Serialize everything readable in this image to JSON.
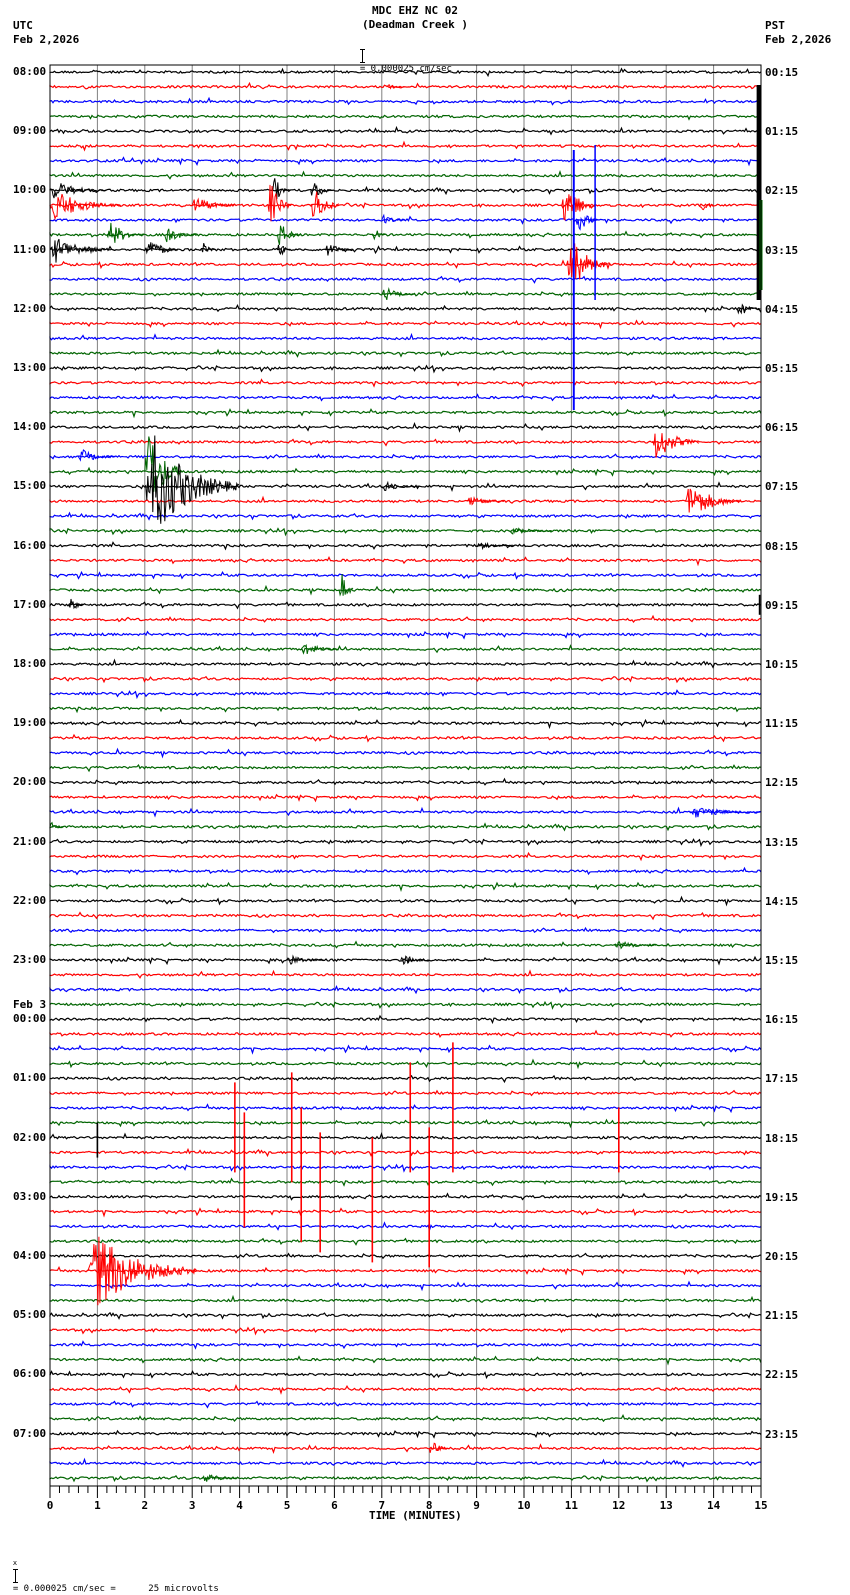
{
  "header": {
    "station_line": "MDC EHZ NC 02",
    "site_line": "(Deadman Creek )",
    "scale_text": "= 0.000025 cm/sec",
    "left_tz": "UTC",
    "left_date": "Feb 2,2026",
    "right_tz": "PST",
    "right_date": "Feb 2,2026"
  },
  "footer": {
    "scale_prefix": "x",
    "scale_text": "= 0.000025 cm/sec =      25 microvolts"
  },
  "colors": {
    "trace_cycle": [
      "#000000",
      "#ff0000",
      "#0000ff",
      "#006400"
    ],
    "grid": "#808080",
    "frame": "#000000"
  },
  "chart_data": {
    "type": "line",
    "title": "MDC EHZ NC 02 (Deadman Creek )",
    "xlabel": "TIME (MINUTES)",
    "ylabel": "",
    "xlim": [
      0,
      15
    ],
    "x_ticks": [
      "0",
      "1",
      "2",
      "3",
      "4",
      "5",
      "6",
      "7",
      "8",
      "9",
      "10",
      "11",
      "12",
      "13",
      "14",
      "15"
    ],
    "traces_per_hour": 4,
    "minutes_per_trace": 15,
    "total_traces": 96,
    "left_labels_utc": [
      {
        "row": 0,
        "label": "08:00"
      },
      {
        "row": 4,
        "label": "09:00"
      },
      {
        "row": 8,
        "label": "10:00"
      },
      {
        "row": 12,
        "label": "11:00"
      },
      {
        "row": 16,
        "label": "12:00"
      },
      {
        "row": 20,
        "label": "13:00"
      },
      {
        "row": 24,
        "label": "14:00"
      },
      {
        "row": 28,
        "label": "15:00"
      },
      {
        "row": 32,
        "label": "16:00"
      },
      {
        "row": 36,
        "label": "17:00"
      },
      {
        "row": 40,
        "label": "18:00"
      },
      {
        "row": 44,
        "label": "19:00"
      },
      {
        "row": 48,
        "label": "20:00"
      },
      {
        "row": 52,
        "label": "21:00"
      },
      {
        "row": 56,
        "label": "22:00"
      },
      {
        "row": 60,
        "label": "23:00"
      },
      {
        "row": 64,
        "label": "00:00",
        "date": "Feb 3"
      },
      {
        "row": 68,
        "label": "01:00"
      },
      {
        "row": 72,
        "label": "02:00"
      },
      {
        "row": 76,
        "label": "03:00"
      },
      {
        "row": 80,
        "label": "04:00"
      },
      {
        "row": 84,
        "label": "05:00"
      },
      {
        "row": 88,
        "label": "06:00"
      },
      {
        "row": 92,
        "label": "07:00"
      }
    ],
    "right_labels_pst": [
      "00:15",
      "01:15",
      "02:15",
      "03:15",
      "04:15",
      "05:15",
      "06:15",
      "07:15",
      "08:15",
      "09:15",
      "10:15",
      "11:15",
      "12:15",
      "13:15",
      "14:15",
      "15:15",
      "16:15",
      "17:15",
      "18:15",
      "19:15",
      "20:15",
      "21:15",
      "22:15",
      "23:15"
    ],
    "events": [
      {
        "row": 1,
        "start_min": 7.1,
        "dur_min": 0.4,
        "amp": 3
      },
      {
        "row": 8,
        "start_min": 0.0,
        "dur_min": 1.2,
        "amp": 10
      },
      {
        "row": 8,
        "start_min": 4.7,
        "dur_min": 0.4,
        "amp": 14
      },
      {
        "row": 8,
        "start_min": 5.5,
        "dur_min": 0.5,
        "amp": 12
      },
      {
        "row": 9,
        "start_min": 0.0,
        "dur_min": 1.5,
        "amp": 16
      },
      {
        "row": 9,
        "start_min": 3.0,
        "dur_min": 0.9,
        "amp": 10
      },
      {
        "row": 9,
        "start_min": 4.6,
        "dur_min": 0.5,
        "amp": 26
      },
      {
        "row": 9,
        "start_min": 5.5,
        "dur_min": 0.6,
        "amp": 24
      },
      {
        "row": 9,
        "start_min": 10.8,
        "dur_min": 0.7,
        "amp": 28
      },
      {
        "row": 9,
        "start_min": 13.7,
        "dur_min": 0.3,
        "amp": 12
      },
      {
        "row": 10,
        "start_min": 7.0,
        "dur_min": 0.5,
        "amp": 6
      },
      {
        "row": 10,
        "start_min": 11.1,
        "dur_min": 0.5,
        "amp": 14
      },
      {
        "row": 11,
        "start_min": 1.2,
        "dur_min": 0.8,
        "amp": 14
      },
      {
        "row": 11,
        "start_min": 2.4,
        "dur_min": 0.7,
        "amp": 10
      },
      {
        "row": 11,
        "start_min": 4.8,
        "dur_min": 0.5,
        "amp": 14
      },
      {
        "row": 11,
        "start_min": 6.8,
        "dur_min": 0.3,
        "amp": 10
      },
      {
        "row": 12,
        "start_min": 0.0,
        "dur_min": 1.4,
        "amp": 14
      },
      {
        "row": 12,
        "start_min": 2.0,
        "dur_min": 0.7,
        "amp": 14
      },
      {
        "row": 12,
        "start_min": 3.2,
        "dur_min": 0.3,
        "amp": 8
      },
      {
        "row": 12,
        "start_min": 4.8,
        "dur_min": 0.3,
        "amp": 10
      },
      {
        "row": 12,
        "start_min": 5.8,
        "dur_min": 0.6,
        "amp": 8
      },
      {
        "row": 13,
        "start_min": 10.9,
        "dur_min": 0.9,
        "amp": 30
      },
      {
        "row": 15,
        "start_min": 7.0,
        "dur_min": 0.7,
        "amp": 8
      },
      {
        "row": 16,
        "start_min": 14.5,
        "dur_min": 0.5,
        "amp": 8
      },
      {
        "row": 25,
        "start_min": 12.7,
        "dur_min": 1.0,
        "amp": 20
      },
      {
        "row": 26,
        "start_min": 0.6,
        "dur_min": 0.8,
        "amp": 8
      },
      {
        "row": 27,
        "start_min": 2.0,
        "dur_min": 0.8,
        "amp": 50
      },
      {
        "row": 28,
        "start_min": 2.0,
        "dur_min": 2.0,
        "amp": 55
      },
      {
        "row": 28,
        "start_min": 7.0,
        "dur_min": 0.8,
        "amp": 5
      },
      {
        "row": 29,
        "start_min": 8.8,
        "dur_min": 0.8,
        "amp": 5
      },
      {
        "row": 29,
        "start_min": 13.4,
        "dur_min": 1.2,
        "amp": 20
      },
      {
        "row": 31,
        "start_min": 9.7,
        "dur_min": 0.9,
        "amp": 5
      },
      {
        "row": 32,
        "start_min": 9.0,
        "dur_min": 0.8,
        "amp": 4
      },
      {
        "row": 35,
        "start_min": 6.1,
        "dur_min": 0.3,
        "amp": 28
      },
      {
        "row": 36,
        "start_min": 0.4,
        "dur_min": 0.3,
        "amp": 12
      },
      {
        "row": 39,
        "start_min": 5.3,
        "dur_min": 0.8,
        "amp": 8
      },
      {
        "row": 42,
        "start_min": 7.1,
        "dur_min": 0.1,
        "amp": 8
      },
      {
        "row": 50,
        "start_min": 13.5,
        "dur_min": 1.5,
        "amp": 6
      },
      {
        "row": 51,
        "start_min": 0.0,
        "dur_min": 0.3,
        "amp": 5
      },
      {
        "row": 59,
        "start_min": 11.9,
        "dur_min": 0.9,
        "amp": 5
      },
      {
        "row": 60,
        "start_min": 5.0,
        "dur_min": 0.8,
        "amp": 6
      },
      {
        "row": 60,
        "start_min": 7.4,
        "dur_min": 0.6,
        "amp": 6
      },
      {
        "row": 81,
        "start_min": 0.8,
        "dur_min": 2.3,
        "amp": 40
      },
      {
        "row": 93,
        "start_min": 8.0,
        "dur_min": 0.4,
        "amp": 10
      },
      {
        "row": 95,
        "start_min": 3.2,
        "dur_min": 0.8,
        "amp": 6
      }
    ],
    "spikes": [
      {
        "row": 73,
        "min": 3.9,
        "up": 70,
        "down": 20
      },
      {
        "row": 73,
        "min": 4.1,
        "up": 40,
        "down": 75
      },
      {
        "row": 73,
        "min": 5.1,
        "up": 80,
        "down": 30
      },
      {
        "row": 73,
        "min": 5.3,
        "up": 45,
        "down": 90
      },
      {
        "row": 73,
        "min": 5.7,
        "up": 20,
        "down": 100
      },
      {
        "row": 73,
        "min": 6.8,
        "up": 15,
        "down": 110
      },
      {
        "row": 73,
        "min": 7.6,
        "up": 90,
        "down": 20
      },
      {
        "row": 73,
        "min": 8.0,
        "up": 25,
        "down": 115
      },
      {
        "row": 73,
        "min": 8.5,
        "up": 110,
        "down": 20
      },
      {
        "row": 73,
        "min": 12.0,
        "up": 45,
        "down": 20
      },
      {
        "row": 72,
        "min": 1.0,
        "up": 15,
        "down": 20
      },
      {
        "row": 36,
        "min": 14.97,
        "up": 10,
        "down": 10
      }
    ],
    "long_vertical": [
      {
        "x_min": 14.95,
        "y_from": 85,
        "y_to": 300,
        "color": "#000000",
        "width": 4
      },
      {
        "x_min": 15.0,
        "y_from": 200,
        "y_to": 290,
        "color": "#006400",
        "width": 3
      },
      {
        "x_min": 11.05,
        "y_from": 150,
        "y_to": 410,
        "color": "#0000ff",
        "width": 2
      },
      {
        "x_min": 11.5,
        "y_from": 145,
        "y_to": 300,
        "color": "#0000ff",
        "width": 1.5
      }
    ]
  }
}
